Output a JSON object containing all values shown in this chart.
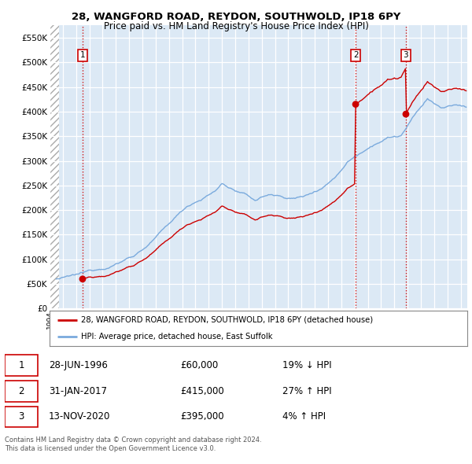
{
  "title1": "28, WANGFORD ROAD, REYDON, SOUTHWOLD, IP18 6PY",
  "title2": "Price paid vs. HM Land Registry's House Price Index (HPI)",
  "bg_color": "#dce9f5",
  "hpi_color": "#7aaadd",
  "price_color": "#cc0000",
  "dashed_color": "#cc0000",
  "ylim": [
    0,
    575000
  ],
  "yticks": [
    0,
    50000,
    100000,
    150000,
    200000,
    250000,
    300000,
    350000,
    400000,
    450000,
    500000,
    550000
  ],
  "ytick_labels": [
    "£0",
    "£50K",
    "£100K",
    "£150K",
    "£200K",
    "£250K",
    "£300K",
    "£350K",
    "£400K",
    "£450K",
    "£500K",
    "£550K"
  ],
  "xmin": 1994.0,
  "xmax": 2025.5,
  "legend_line1": "28, WANGFORD ROAD, REYDON, SOUTHWOLD, IP18 6PY (detached house)",
  "legend_line2": "HPI: Average price, detached house, East Suffolk",
  "transactions": [
    {
      "num": 1,
      "date": "28-JUN-1996",
      "price": 60000,
      "x": 1996.49,
      "pct": "19%",
      "dir": "↓"
    },
    {
      "num": 2,
      "date": "31-JAN-2017",
      "price": 415000,
      "x": 2017.08,
      "pct": "27%",
      "dir": "↑"
    },
    {
      "num": 3,
      "date": "13-NOV-2020",
      "price": 395000,
      "x": 2020.87,
      "pct": "4%",
      "dir": "↑"
    }
  ],
  "hpi_anchors_x": [
    1994.5,
    1995.5,
    1996.5,
    1997.5,
    1998.5,
    1999.5,
    2000.5,
    2001.5,
    2002.5,
    2003.5,
    2004.5,
    2005.5,
    2006.5,
    2007.0,
    2007.5,
    2008.5,
    2009.5,
    2010.5,
    2011.5,
    2012.5,
    2013.5,
    2014.5,
    2015.5,
    2016.5,
    2017.5,
    2018.5,
    2019.5,
    2020.5,
    2021.5,
    2022.5,
    2023.5,
    2024.5,
    2025.3
  ],
  "hpi_anchors_y": [
    60000,
    63000,
    68000,
    76000,
    85000,
    97000,
    112000,
    133000,
    158000,
    185000,
    210000,
    225000,
    240000,
    255000,
    248000,
    235000,
    220000,
    232000,
    228000,
    225000,
    232000,
    248000,
    270000,
    305000,
    325000,
    345000,
    358000,
    362000,
    400000,
    435000,
    415000,
    420000,
    418000
  ],
  "footer1": "Contains HM Land Registry data © Crown copyright and database right 2024.",
  "footer2": "This data is licensed under the Open Government Licence v3.0."
}
